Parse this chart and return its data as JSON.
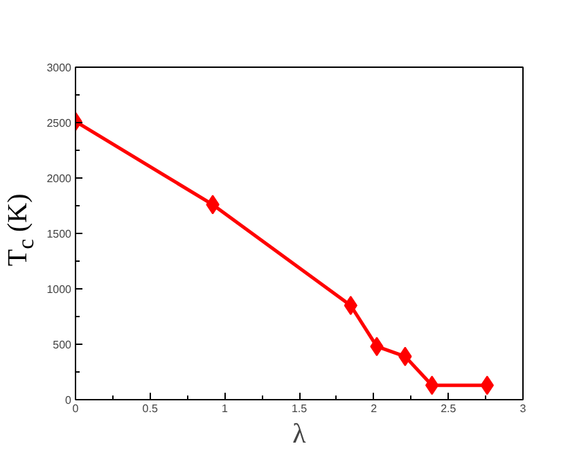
{
  "chart_data": {
    "type": "line",
    "xlabel": "λ",
    "ylabel": "T$_{c}$ (K)",
    "x": [
      0,
      0.92,
      1.845,
      2.02,
      2.21,
      2.39,
      2.76
    ],
    "series": [
      {
        "color": "#ff0000",
        "values": [
          2510,
          1760,
          850,
          480,
          390,
          130,
          130
        ]
      }
    ],
    "xlim": [
      0,
      3
    ],
    "ylim": [
      0,
      3000
    ],
    "xticks": [
      0,
      0.5,
      1,
      1.5,
      2,
      2.5,
      3
    ],
    "yticks": [
      0,
      500,
      1000,
      1500,
      2000,
      2500,
      3000
    ],
    "grid": false,
    "marker": "diamond",
    "line_style": "solid"
  }
}
